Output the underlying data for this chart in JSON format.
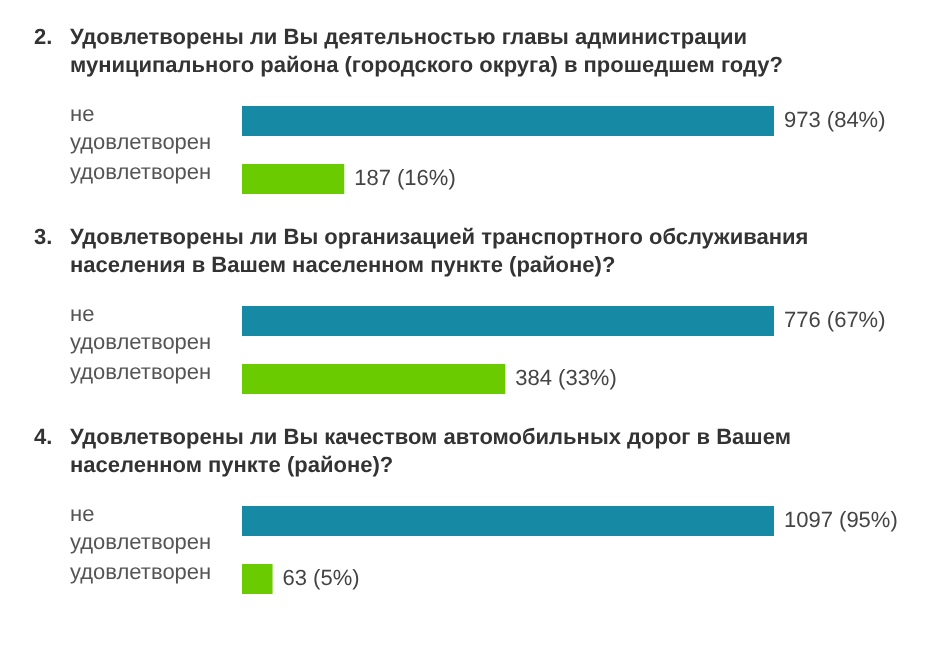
{
  "chart_data": [
    {
      "type": "bar",
      "orientation": "horizontal",
      "title": "2. Удовлетворены ли Вы деятельностью главы администрации муниципального района (городского округа) в прошедшем году?",
      "categories": [
        "не удовлетворен",
        "удовлетворен"
      ],
      "values": [
        973,
        187
      ],
      "value_labels": [
        "973 (84%)",
        "187 (16%)"
      ],
      "colors": [
        "#168aa4",
        "#6acc00"
      ]
    },
    {
      "type": "bar",
      "orientation": "horizontal",
      "title": "3. Удовлетворены ли Вы организацией транспортного обслуживания населения в Вашем населенном пункте (районе)?",
      "categories": [
        "не удовлетворен",
        "удовлетворен"
      ],
      "values": [
        776,
        384
      ],
      "value_labels": [
        "776 (67%)",
        "384 (33%)"
      ],
      "colors": [
        "#168aa4",
        "#6acc00"
      ]
    },
    {
      "type": "bar",
      "orientation": "horizontal",
      "title": "4. Удовлетворены ли Вы качеством автомобильных дорог в Вашем населенном пункте (районе)?",
      "categories": [
        "не удовлетворен",
        "удовлетворен"
      ],
      "values": [
        1097,
        63
      ],
      "value_labels": [
        "1097 (95%)",
        "63 (5%)"
      ],
      "colors": [
        "#168aa4",
        "#6acc00"
      ]
    }
  ]
}
